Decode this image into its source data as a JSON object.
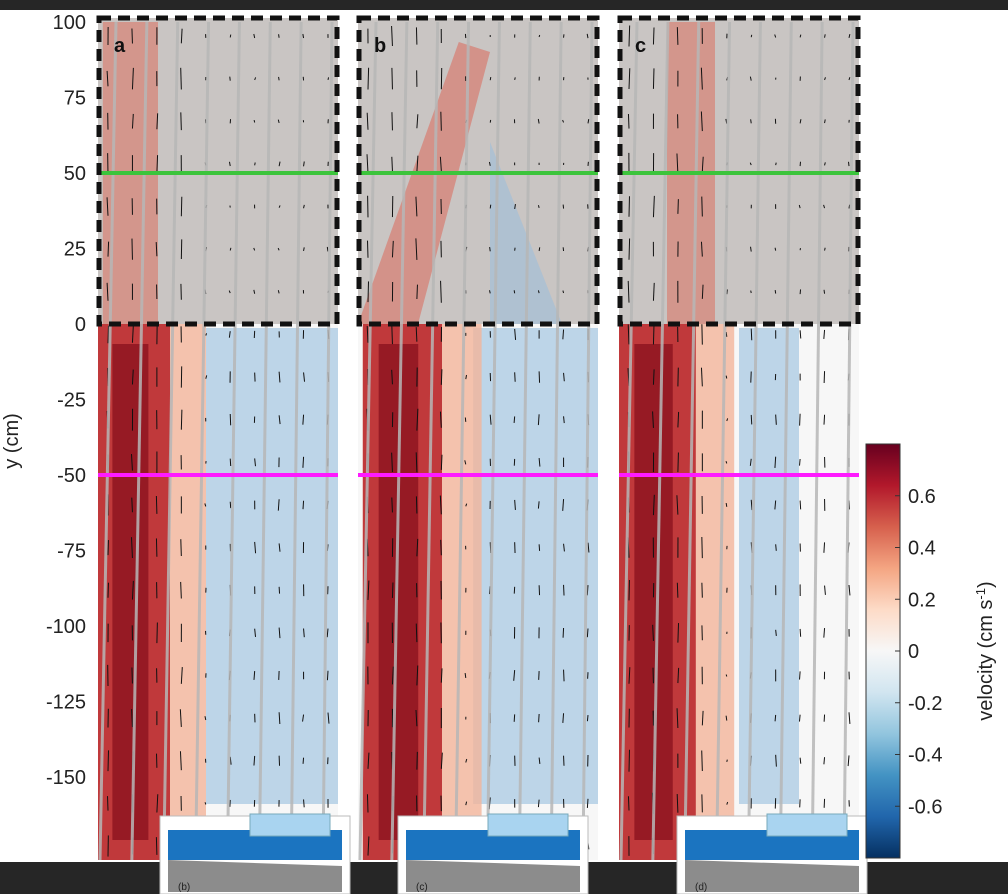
{
  "chart_data": {
    "type": "heatmap",
    "title": "",
    "ylabel": "y (cm)",
    "ylim": [
      -160,
      100
    ],
    "yticks": [
      100,
      75,
      50,
      25,
      0,
      -25,
      -50,
      -75,
      -100,
      -125,
      -150
    ],
    "reference_lines": [
      {
        "y": 50,
        "color": "#3cc43c"
      },
      {
        "y": -50,
        "color": "#ff1aff"
      }
    ],
    "panels": [
      {
        "label": "a",
        "inset_label": "(b)"
      },
      {
        "label": "b",
        "inset_label": "(c)"
      },
      {
        "label": "c",
        "inset_label": "(d)"
      }
    ],
    "colorbar": {
      "label": "velocity (cm s",
      "label_exp": "-1",
      "label_close": ")",
      "range": [
        -0.8,
        0.8
      ],
      "ticks": [
        0.6,
        0.4,
        0.2,
        0,
        -0.2,
        -0.4,
        -0.6
      ],
      "tick_labels": [
        "0.6",
        "0.4",
        "0.2",
        "0",
        "-0.2",
        "-0.4",
        "-0.6"
      ],
      "colors": [
        "#053061",
        "#2166ac",
        "#4393c3",
        "#92c5de",
        "#d1e5f0",
        "#f7f7f7",
        "#fddbc7",
        "#f4a582",
        "#d6604d",
        "#b2182b",
        "#67001f"
      ]
    }
  }
}
